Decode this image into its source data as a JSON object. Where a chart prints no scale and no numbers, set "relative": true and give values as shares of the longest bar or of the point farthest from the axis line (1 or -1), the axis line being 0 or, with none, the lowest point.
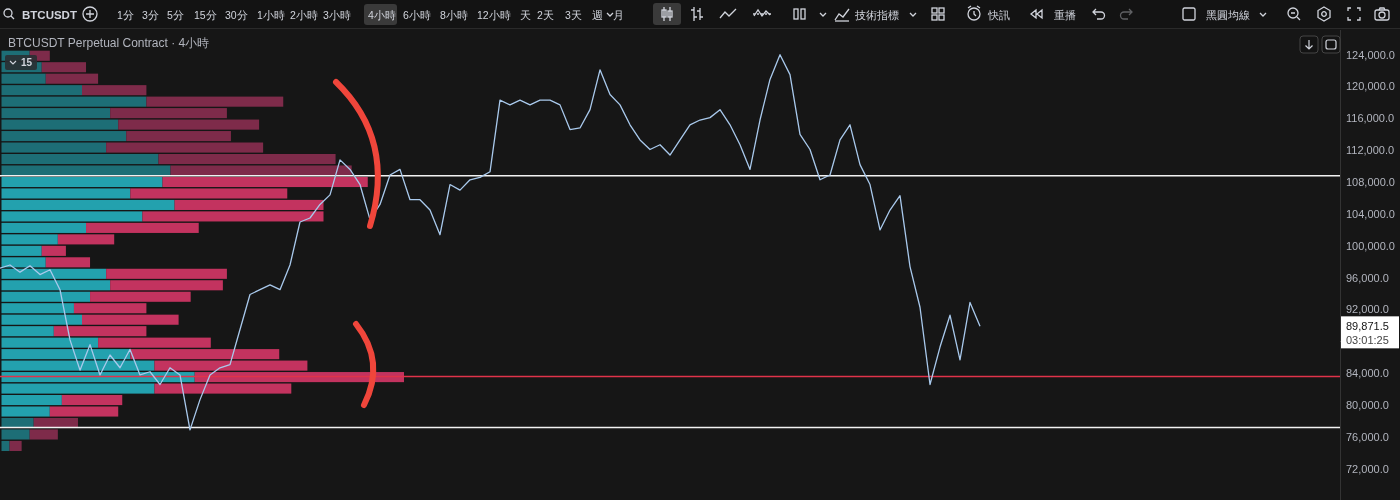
{
  "chart_data": [
    {
      "type": "other",
      "annotations": [
        "BTCUSDT",
        "1分",
        "3分",
        "5分",
        "15分",
        "30分",
        "1小時",
        "2小時",
        "3小時",
        "4小時",
        "6小時",
        "8小時",
        "12小時",
        "天",
        "2天",
        "3天",
        "週",
        "月",
        "技術指標",
        "快訊",
        "重播",
        "黑圓均線"
      ]
    },
    {
      "type": "line",
      "title": "BTCUSDT Perpetual Contract · 4小時",
      "categories": [
        null,
        null,
        null,
        null,
        null,
        null,
        null,
        null,
        null,
        null,
        null,
        null,
        null,
        null,
        null,
        null,
        null,
        null,
        null,
        null,
        null,
        null,
        null,
        null,
        null,
        null,
        null,
        null,
        null,
        null,
        null,
        null,
        null,
        null,
        null,
        null,
        null,
        null,
        null,
        null,
        null,
        null,
        null,
        null,
        null,
        null,
        null,
        null,
        null,
        null,
        null,
        null,
        null,
        null,
        null,
        null,
        null,
        null,
        null,
        null,
        null,
        null,
        null,
        null,
        null,
        null,
        null,
        null,
        null,
        null,
        null,
        null,
        null,
        null,
        null,
        null,
        null,
        null,
        null,
        null,
        null,
        null,
        null,
        null,
        null,
        null,
        null,
        null,
        null,
        null,
        null,
        null,
        null,
        null,
        null,
        null,
        null,
        null,
        null,
        null,
        null,
        null,
        null,
        null,
        null,
        null,
        null,
        null,
        null,
        null,
        null,
        null,
        null,
        null,
        null,
        null,
        null,
        null,
        null,
        null,
        null,
        null,
        null,
        null,
        null,
        null,
        null,
        null,
        null,
        null,
        null,
        null,
        null,
        null
      ],
      "series": [
        {
          "color": "#a9c9ec",
          "values": [
            97200,
            97600,
            96700,
            97500,
            96400,
            97000,
            94500,
            88200,
            84400,
            87600,
            83800,
            86300,
            84700,
            87000,
            83800,
            84200,
            82600,
            84700,
            83800,
            76900,
            80700,
            83800,
            84700,
            85100,
            89500,
            93900,
            94500,
            95100,
            94500,
            97600,
            103000,
            103500,
            105200,
            106400,
            110800,
            109600,
            107700,
            103300,
            105200,
            108900,
            109600,
            105800,
            105800,
            104500,
            101400,
            107700,
            107000,
            108300,
            108600,
            109300,
            118300,
            117700,
            118300,
            117700,
            118300,
            118300,
            117700,
            114600,
            114800,
            117100,
            122100,
            119000,
            117700,
            115200,
            113300,
            112100,
            112700,
            111400,
            113300,
            115200,
            115800,
            116100,
            117100,
            115200,
            112700,
            109600,
            115800,
            120900,
            124000,
            121500,
            114000,
            112100,
            108300,
            108900,
            113300,
            115200,
            110200,
            107700,
            102000,
            104500,
            106300,
            97400,
            92300,
            82600,
            87300,
            91300,
            85700,
            92900,
            89900,
            null,
            null,
            null,
            null,
            null,
            null,
            null,
            null,
            null,
            null,
            null,
            null,
            null,
            null,
            null,
            null,
            null,
            null,
            null,
            null,
            null,
            null,
            null,
            null,
            null,
            null,
            null,
            null,
            null,
            null,
            null,
            null,
            null,
            null,
            null
          ]
        }
      ],
      "ylim": [
        68100,
        127100
      ],
      "yticks": [
        {
          "value": 72000,
          "label": "72,000.0"
        },
        {
          "value": 76000,
          "label": "76,000.0"
        },
        {
          "value": 80000,
          "label": "80,000.0"
        },
        {
          "value": 84000,
          "label": "84,000.0"
        },
        {
          "value": 88000,
          "label": null
        },
        {
          "value": 92000,
          "label": "92,000.0"
        },
        {
          "value": 96000,
          "label": "96,000.0"
        },
        {
          "value": 100000,
          "label": "100,000.0"
        },
        {
          "value": 104000,
          "label": "104,000.0"
        },
        {
          "value": 108000,
          "label": "108,000.0"
        },
        {
          "value": 112000,
          "label": "112,000.0"
        },
        {
          "value": 116000,
          "label": "116,000.0"
        },
        {
          "value": 120000,
          "label": "120,000.0"
        },
        {
          "value": 124000,
          "label": "124,000.0"
        }
      ],
      "ref_lines": [
        {
          "axis": "y",
          "value": 108800,
          "color": "#f2f2f2"
        },
        {
          "axis": "y",
          "value": 83600,
          "color": "#e0334a"
        },
        {
          "axis": "y",
          "value": 77200,
          "color": "#f2f2f2"
        }
      ],
      "annotations": [
        "89,871.5",
        "03:01:25"
      ]
    },
    {
      "type": "bar",
      "orientation": "horizontal",
      "stacked": true,
      "relative": true,
      "categories": [
        null,
        null,
        null,
        null,
        null,
        null,
        null,
        null,
        null,
        null,
        null,
        null,
        null,
        null,
        null,
        null,
        null,
        null,
        null,
        null,
        null,
        null,
        null,
        null,
        null,
        null,
        null,
        null,
        null,
        null,
        null,
        null,
        null,
        null,
        null
      ],
      "series": [
        {
          "colors": [
            "#1d6e76",
            "#1d6e76",
            "#1d6e76",
            "#1d6e76",
            "#1d6e76",
            "#1d6e76",
            "#1d6e76",
            "#1d6e76",
            "#1d6e76",
            "#1d6e76",
            "#1d6e76",
            "#23a1ae",
            "#23a1ae",
            "#23a1ae",
            "#23a1ae",
            "#23a1ae",
            "#23a1ae",
            "#23a1ae",
            "#23a1ae",
            "#23a1ae",
            "#23a1ae",
            "#23a1ae",
            "#23a1ae",
            "#23a1ae",
            "#23a1ae",
            "#23a1ae",
            "#23a1ae",
            "#23a1ae",
            "#23a1ae",
            "#23a1ae",
            "#23a1ae",
            "#23a1ae",
            "#1d6e76",
            "#1d6e76",
            "#1d6e76"
          ],
          "values": [
            0.07,
            0.1,
            0.11,
            0.2,
            0.36,
            0.27,
            0.29,
            0.31,
            0.26,
            0.39,
            0.42,
            0.4,
            0.32,
            0.43,
            0.35,
            0.21,
            0.14,
            0.1,
            0.11,
            0.26,
            0.27,
            0.22,
            0.18,
            0.2,
            0.13,
            0.24,
            0.32,
            0.38,
            0.48,
            0.38,
            0.15,
            0.12,
            0.08,
            0.07,
            0.02
          ]
        },
        {
          "colors": [
            "#7e2b4a",
            "#7e2b4a",
            "#7e2b4a",
            "#7e2b4a",
            "#7e2b4a",
            "#7e2b4a",
            "#7e2b4a",
            "#7e2b4a",
            "#7e2b4a",
            "#7e2b4a",
            "#7e2b4a",
            "#c3335f",
            "#c3335f",
            "#c3335f",
            "#c3335f",
            "#c3335f",
            "#c3335f",
            "#c3335f",
            "#c3335f",
            "#c3335f",
            "#c3335f",
            "#c3335f",
            "#c3335f",
            "#c3335f",
            "#c3335f",
            "#c3335f",
            "#c3335f",
            "#c3335f",
            "#c3335f",
            "#c3335f",
            "#c3335f",
            "#c3335f",
            "#7e2b4a",
            "#7e2b4a",
            "#7e2b4a"
          ],
          "values": [
            0.05,
            0.11,
            0.13,
            0.16,
            0.34,
            0.29,
            0.35,
            0.26,
            0.39,
            0.44,
            0.45,
            0.51,
            0.39,
            0.37,
            0.45,
            0.28,
            0.14,
            0.06,
            0.11,
            0.3,
            0.28,
            0.25,
            0.18,
            0.24,
            0.23,
            0.28,
            0.37,
            0.38,
            0.52,
            0.34,
            0.15,
            0.17,
            0.11,
            0.07,
            0.03
          ]
        }
      ],
      "annotations": [
        "15"
      ]
    }
  ]
}
